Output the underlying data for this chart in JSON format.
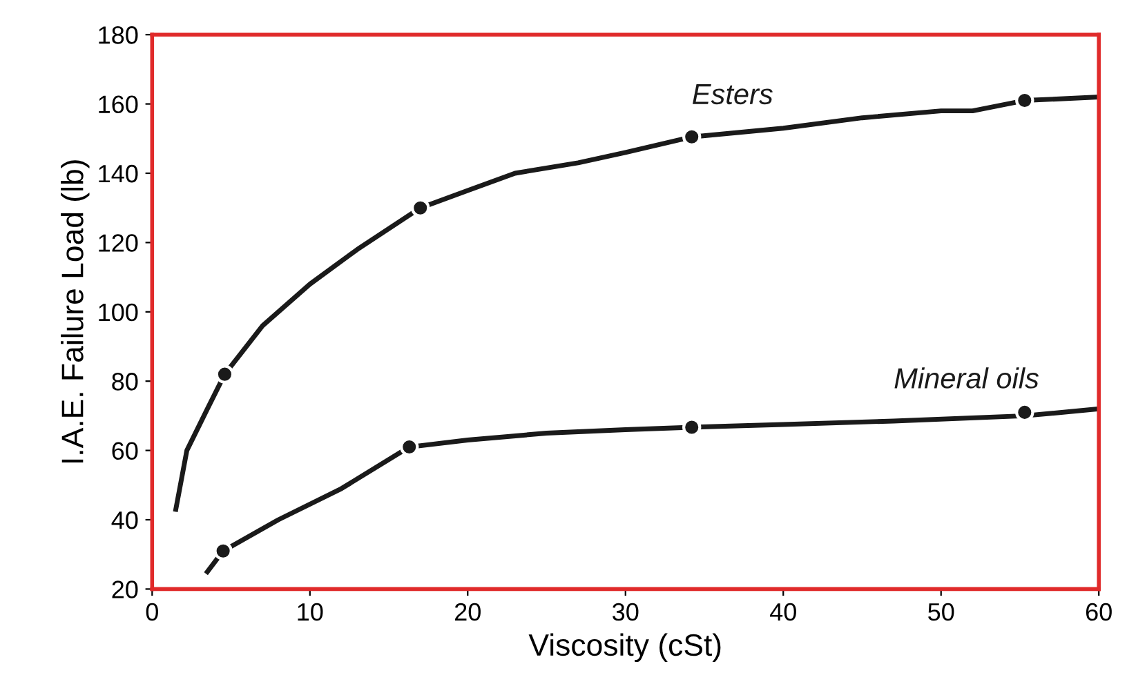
{
  "chart_data": {
    "type": "line",
    "xlabel": "Viscosity (cSt)",
    "ylabel": "I.A.E. Failure Load (lb)",
    "xlim": [
      0,
      60
    ],
    "ylim": [
      20,
      180
    ],
    "xticks": [
      0,
      10,
      20,
      30,
      40,
      50,
      60
    ],
    "yticks": [
      20,
      40,
      60,
      80,
      100,
      120,
      140,
      160,
      180
    ],
    "grid": false,
    "line_style": "solid",
    "series": [
      {
        "name": "Esters",
        "color": "#1a1a1a",
        "x": [
          1.5,
          2.2,
          3.5,
          4.6,
          7,
          10,
          13,
          17,
          20,
          23,
          27,
          30,
          34.2,
          40,
          45,
          50,
          52,
          55.3,
          60
        ],
        "values": [
          43,
          60,
          72,
          82,
          96,
          108,
          118,
          130,
          135,
          140,
          143,
          146,
          150.5,
          153,
          156,
          158,
          158,
          161,
          162
        ]
      },
      {
        "name": "Mineral oils",
        "color": "#1a1a1a",
        "x": [
          3.5,
          4.5,
          8,
          12,
          16.3,
          20,
          25,
          30,
          34.2,
          40,
          47,
          55.3,
          60
        ],
        "values": [
          25,
          31,
          40,
          49,
          61,
          63,
          65,
          66,
          66.7,
          67.5,
          68.5,
          70,
          72
        ]
      },
      {
        "type": "scatter",
        "marker": "circle",
        "color": "#1a1a1a",
        "x": [
          4.6,
          17,
          34.2,
          55.3
        ],
        "values": [
          82,
          130,
          150.5,
          161
        ]
      },
      {
        "type": "scatter",
        "marker": "circle",
        "color": "#1a1a1a",
        "x": [
          4.5,
          16.3,
          34.2,
          55.3
        ],
        "values": [
          31,
          61,
          66.7,
          71
        ]
      }
    ]
  }
}
